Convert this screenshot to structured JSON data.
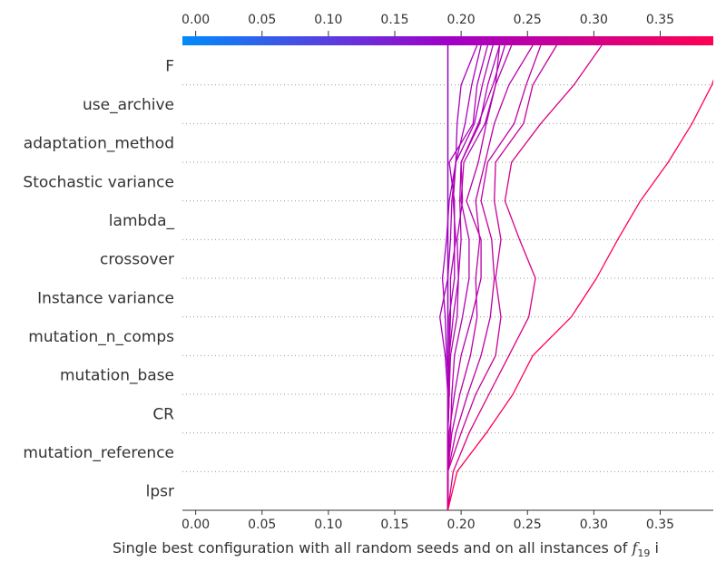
{
  "chart_data": {
    "type": "line",
    "chart_kind": "decision plot",
    "xlabel": "Single best configuration with all random seeds and on all instances of f19 i",
    "xlabel_main": "Single best configuration with all random seeds and on all instances of ",
    "xlabel_f": "f",
    "xlabel_sub": "19",
    "xlabel_tail": " i",
    "xlim": [
      -0.01,
      0.39
    ],
    "base_value": 0.19,
    "x_ticks": [
      "0.00",
      "0.05",
      "0.10",
      "0.15",
      "0.20",
      "0.25",
      "0.30",
      "0.35"
    ],
    "x_tick_values": [
      0.0,
      0.05,
      0.1,
      0.15,
      0.2,
      0.25,
      0.3,
      0.35
    ],
    "features": [
      "F",
      "use_archive",
      "adaptation_method",
      "Stochastic variance",
      "lambda_",
      "crossover",
      "Instance variance",
      "mutation_n_comps",
      "mutation_base",
      "CR",
      "mutation_reference",
      "lpsr"
    ],
    "colorbar": {
      "min": 0.0,
      "max": 0.39,
      "colors": [
        "#008bfb",
        "#a100c8",
        "#ff0052"
      ]
    },
    "grid": "dotted horizontal",
    "series": [
      {
        "values": [
          0.19,
          0.19,
          0.19,
          0.19,
          0.19,
          0.19,
          0.19,
          0.19,
          0.19,
          0.19,
          0.19,
          0.19,
          0.19
        ]
      },
      {
        "values": [
          0.19,
          0.19,
          0.19,
          0.19,
          0.188,
          0.184,
          0.19,
          0.192,
          0.193,
          0.196,
          0.197,
          0.2,
          0.212
        ]
      },
      {
        "values": [
          0.19,
          0.19,
          0.19,
          0.191,
          0.189,
          0.188,
          0.186,
          0.189,
          0.191,
          0.196,
          0.203,
          0.208,
          0.215
        ]
      },
      {
        "values": [
          0.19,
          0.19,
          0.19,
          0.191,
          0.191,
          0.191,
          0.195,
          0.195,
          0.195,
          0.191,
          0.209,
          0.212,
          0.22
        ]
      },
      {
        "values": [
          0.19,
          0.19,
          0.19,
          0.191,
          0.191,
          0.192,
          0.192,
          0.196,
          0.194,
          0.196,
          0.21,
          0.216,
          0.224
        ]
      },
      {
        "values": [
          0.19,
          0.19,
          0.19,
          0.19,
          0.191,
          0.194,
          0.198,
          0.2,
          0.199,
          0.2,
          0.214,
          0.22,
          0.229
        ]
      },
      {
        "values": [
          0.19,
          0.19,
          0.19,
          0.191,
          0.192,
          0.197,
          0.198,
          0.197,
          0.201,
          0.2,
          0.213,
          0.224,
          0.233
        ]
      },
      {
        "values": [
          0.19,
          0.19,
          0.192,
          0.193,
          0.195,
          0.201,
          0.206,
          0.206,
          0.2,
          0.202,
          0.218,
          0.226,
          0.229
        ]
      },
      {
        "values": [
          0.19,
          0.19,
          0.191,
          0.195,
          0.2,
          0.208,
          0.215,
          0.215,
          0.204,
          0.213,
          0.219,
          0.226,
          0.238
        ]
      },
      {
        "values": [
          0.19,
          0.19,
          0.193,
          0.199,
          0.207,
          0.212,
          0.211,
          0.214,
          0.211,
          0.218,
          0.225,
          0.236,
          0.254
        ]
      },
      {
        "values": [
          0.19,
          0.19,
          0.196,
          0.205,
          0.215,
          0.222,
          0.225,
          0.223,
          0.215,
          0.22,
          0.24,
          0.249,
          0.26
        ]
      },
      {
        "values": [
          0.19,
          0.19,
          0.2,
          0.211,
          0.226,
          0.23,
          0.226,
          0.23,
          0.225,
          0.226,
          0.247,
          0.254,
          0.272
        ]
      },
      {
        "values": [
          0.19,
          0.194,
          0.206,
          0.221,
          0.236,
          0.251,
          0.256,
          0.244,
          0.233,
          0.238,
          0.26,
          0.285,
          0.306
        ]
      },
      {
        "values": [
          0.19,
          0.197,
          0.219,
          0.239,
          0.254,
          0.283,
          0.302,
          0.318,
          0.335,
          0.356,
          0.374,
          0.389,
          0.399
        ]
      }
    ]
  }
}
